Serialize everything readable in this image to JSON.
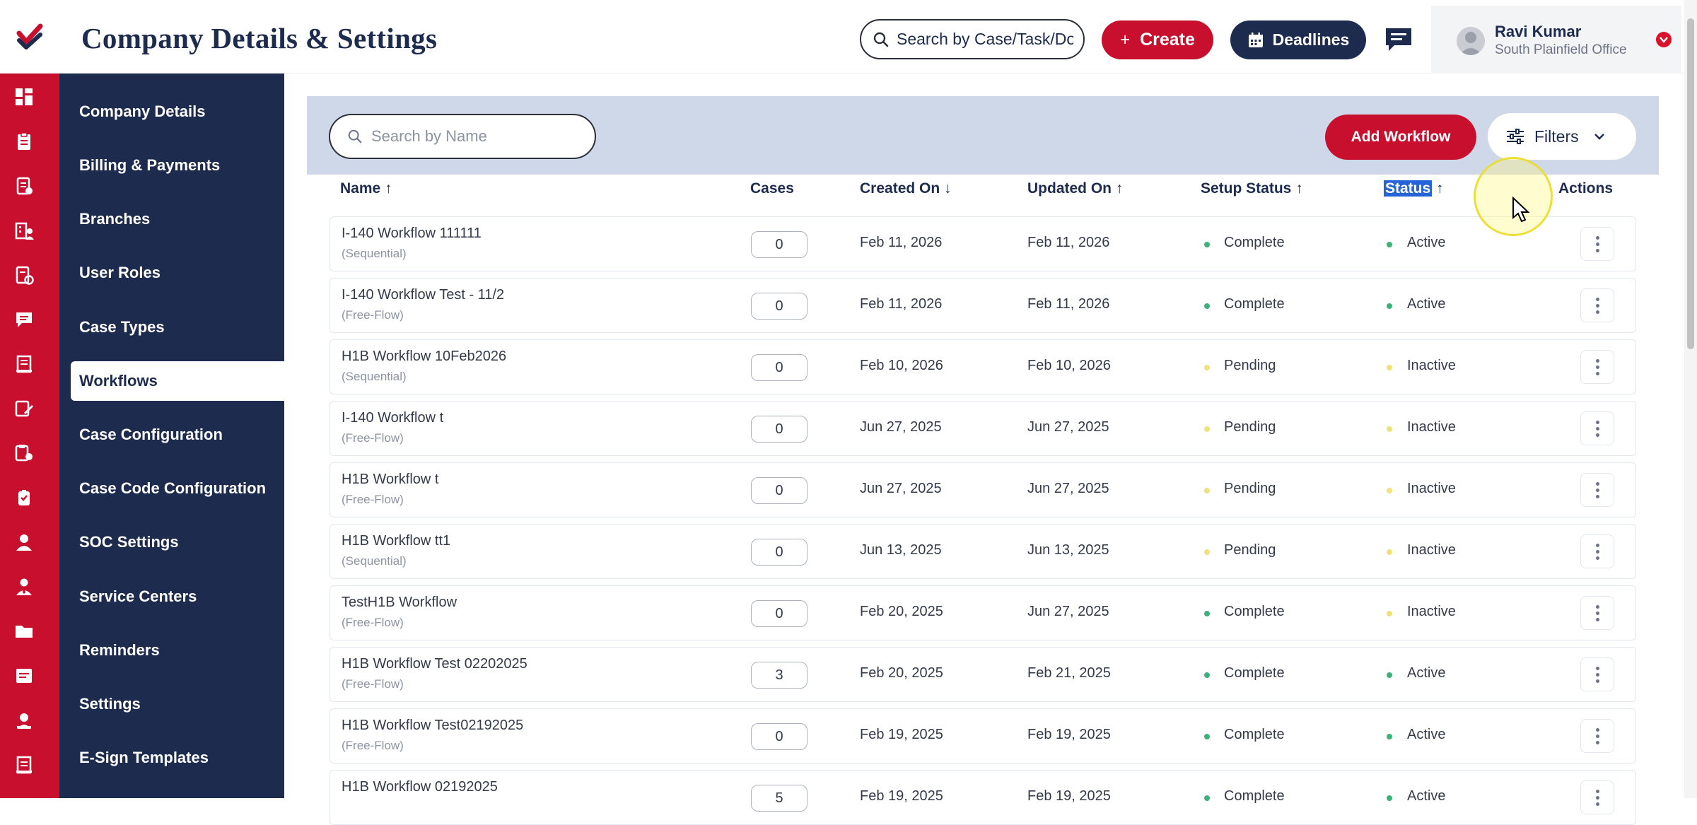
{
  "header": {
    "title": "Company Details & Settings",
    "search_text": "Search by Case/Task/Docu",
    "create_label": "Create",
    "deadlines_label": "Deadlines",
    "user_name": "Ravi Kumar",
    "user_office": "South Plainfield Office"
  },
  "colors": {
    "brand_red": "#c8102e",
    "navy": "#1d2b4f",
    "complete_dot": "#3bb27a",
    "pending_dot": "#f0e27a"
  },
  "sidebar": {
    "items": [
      {
        "label": "Company Details"
      },
      {
        "label": "Billing & Payments"
      },
      {
        "label": "Branches"
      },
      {
        "label": "User Roles"
      },
      {
        "label": "Case Types"
      },
      {
        "label": "Workflows",
        "active": true
      },
      {
        "label": "Case Configuration"
      },
      {
        "label": "Case Code Configuration"
      },
      {
        "label": "SOC Settings"
      },
      {
        "label": "Service Centers"
      },
      {
        "label": "Reminders"
      },
      {
        "label": "Settings"
      },
      {
        "label": "E-Sign Templates"
      }
    ]
  },
  "toolbar": {
    "search_placeholder": "Search by Name",
    "add_label": "Add Workflow",
    "filters_label": "Filters"
  },
  "table": {
    "headers": {
      "name": "Name",
      "cases": "Cases",
      "created": "Created On",
      "updated": "Updated On",
      "setup": "Setup Status",
      "status": "Status",
      "actions": "Actions"
    },
    "rows": [
      {
        "name": "I-140 Workflow 111111",
        "type": "(Sequential)",
        "cases": "0",
        "created": "Feb 11, 2026",
        "updated": "Feb 11, 2026",
        "setup": "Complete",
        "status": "Active"
      },
      {
        "name": "I-140 Workflow Test - 11/2",
        "type": "(Free-Flow)",
        "cases": "0",
        "created": "Feb 11, 2026",
        "updated": "Feb 11, 2026",
        "setup": "Complete",
        "status": "Active"
      },
      {
        "name": "H1B Workflow 10Feb2026",
        "type": "(Sequential)",
        "cases": "0",
        "created": "Feb 10, 2026",
        "updated": "Feb 10, 2026",
        "setup": "Pending",
        "status": "Inactive"
      },
      {
        "name": "I-140 Workflow t",
        "type": "(Free-Flow)",
        "cases": "0",
        "created": "Jun 27, 2025",
        "updated": "Jun 27, 2025",
        "setup": "Pending",
        "status": "Inactive"
      },
      {
        "name": "H1B Workflow t",
        "type": "(Free-Flow)",
        "cases": "0",
        "created": "Jun 27, 2025",
        "updated": "Jun 27, 2025",
        "setup": "Pending",
        "status": "Inactive"
      },
      {
        "name": "H1B Workflow tt1",
        "type": "(Sequential)",
        "cases": "0",
        "created": "Jun 13, 2025",
        "updated": "Jun 13, 2025",
        "setup": "Pending",
        "status": "Inactive"
      },
      {
        "name": "TestH1B Workflow",
        "type": "(Free-Flow)",
        "cases": "0",
        "created": "Feb 20, 2025",
        "updated": "Jun 27, 2025",
        "setup": "Complete",
        "status": "Inactive"
      },
      {
        "name": "H1B Workflow Test 02202025",
        "type": "(Free-Flow)",
        "cases": "3",
        "created": "Feb 20, 2025",
        "updated": "Feb 21, 2025",
        "setup": "Complete",
        "status": "Active"
      },
      {
        "name": "H1B Workflow Test02192025",
        "type": "(Free-Flow)",
        "cases": "0",
        "created": "Feb 19, 2025",
        "updated": "Feb 19, 2025",
        "setup": "Complete",
        "status": "Active"
      },
      {
        "name": "H1B Workflow 02192025",
        "type": "",
        "cases": "5",
        "created": "Feb 19, 2025",
        "updated": "Feb 19, 2025",
        "setup": "Complete",
        "status": "Active"
      }
    ]
  }
}
